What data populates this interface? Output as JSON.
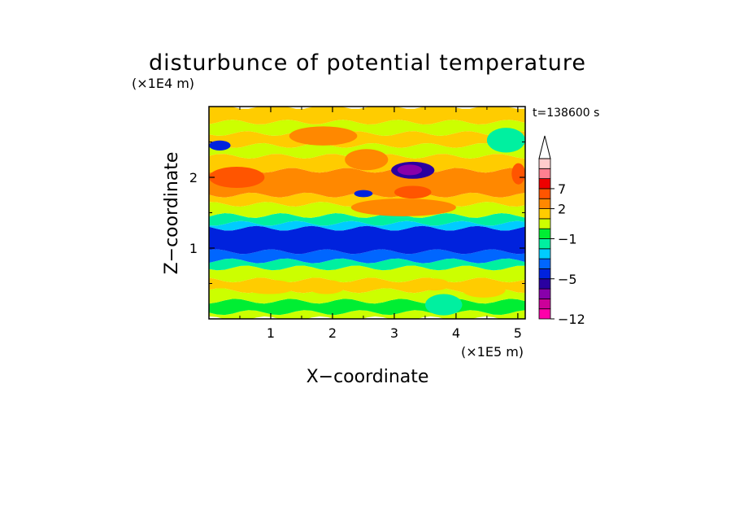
{
  "chart_data": {
    "type": "heatmap",
    "title": "disturbunce of potential temperature",
    "xlabel": "X−coordinate",
    "ylabel": "Z−coordinate",
    "x_unit": "(×1E5 m)",
    "y_unit": "(×1E4 m)",
    "time_label": "t=138600 s",
    "xlim": [
      0,
      5.12
    ],
    "ylim": [
      0,
      3.0
    ],
    "x_ticks": [
      1,
      2,
      3,
      4,
      5
    ],
    "x_tick_labels": [
      "1",
      "2",
      "3",
      "4",
      "5"
    ],
    "y_ticks": [
      1,
      2
    ],
    "y_tick_labels": [
      "1",
      "2"
    ],
    "colorbar": {
      "levels": [
        -12,
        -10,
        -8,
        -6,
        -5,
        -4,
        -3,
        -2,
        -1,
        0,
        1,
        2,
        4,
        7,
        9,
        11
      ],
      "colors": [
        "#ff00aa",
        "#cc0099",
        "#8800aa",
        "#2a00a0",
        "#0022dd",
        "#0066ff",
        "#00ccff",
        "#00f0a0",
        "#00ee33",
        "#ccff00",
        "#ffcc00",
        "#ff8800",
        "#ff5500",
        "#ee0000",
        "#ff8090",
        "#ffcccc"
      ],
      "extend": "max",
      "tick_labels": [
        "−12",
        "−5",
        "−1",
        "2",
        "7"
      ],
      "tick_values": [
        -12,
        -5,
        -1,
        2,
        7
      ]
    },
    "bands": [
      {
        "z": [
          0.0,
          0.09
        ],
        "value": 0.5
      },
      {
        "z": [
          0.09,
          0.25
        ],
        "value": -0.5
      },
      {
        "z": [
          0.25,
          0.4
        ],
        "value": 0.5
      },
      {
        "z": [
          0.4,
          0.55
        ],
        "value": 1.5
      },
      {
        "z": [
          0.55,
          0.72
        ],
        "value": 0.5
      },
      {
        "z": [
          0.72,
          0.82
        ],
        "value": -1.5
      },
      {
        "z": [
          0.82,
          0.95
        ],
        "value": -3.5
      },
      {
        "z": [
          0.95,
          1.28
        ],
        "value": -4.5
      },
      {
        "z": [
          1.28,
          1.35
        ],
        "value": -2.5
      },
      {
        "z": [
          1.35,
          1.46
        ],
        "value": -1.5
      },
      {
        "z": [
          1.46,
          1.62
        ],
        "value": 0.5
      },
      {
        "z": [
          1.62,
          1.75
        ],
        "value": 1.5
      },
      {
        "z": [
          1.75,
          2.1
        ],
        "value": 2.5
      },
      {
        "z": [
          2.1,
          2.3
        ],
        "value": 1.5
      },
      {
        "z": [
          2.3,
          2.45
        ],
        "value": 0.5
      },
      {
        "z": [
          2.45,
          2.62
        ],
        "value": 1.5
      },
      {
        "z": [
          2.62,
          2.78
        ],
        "value": 0.5
      },
      {
        "z": [
          2.78,
          3.0
        ],
        "value": 1.5
      }
    ],
    "features": [
      {
        "x": [
          0.0,
          0.9
        ],
        "z": [
          1.85,
          2.15
        ],
        "value": 5
      },
      {
        "x": [
          0.9,
          1.7
        ],
        "z": [
          1.8,
          2.1
        ],
        "value": 3
      },
      {
        "x": [
          2.2,
          2.9
        ],
        "z": [
          2.1,
          2.4
        ],
        "value": 3
      },
      {
        "x": [
          2.95,
          3.65
        ],
        "z": [
          1.98,
          2.22
        ],
        "value": -5.5
      },
      {
        "x": [
          3.05,
          3.45
        ],
        "z": [
          2.03,
          2.18
        ],
        "value": -7
      },
      {
        "x": [
          2.35,
          2.65
        ],
        "z": [
          1.72,
          1.82
        ],
        "value": -4.5
      },
      {
        "x": [
          3.0,
          3.6
        ],
        "z": [
          1.7,
          1.88
        ],
        "value": 5
      },
      {
        "x": [
          2.3,
          4.0
        ],
        "z": [
          1.45,
          1.7
        ],
        "value": 3
      },
      {
        "x": [
          0.0,
          0.35
        ],
        "z": [
          2.38,
          2.52
        ],
        "value": -4.5
      },
      {
        "x": [
          1.3,
          2.4
        ],
        "z": [
          2.45,
          2.72
        ],
        "value": 2.5
      },
      {
        "x": [
          4.9,
          5.12
        ],
        "z": [
          1.9,
          2.2
        ],
        "value": 5
      },
      {
        "x": [
          0.55,
          1.4
        ],
        "z": [
          0.35,
          0.55
        ],
        "value": 1.5
      },
      {
        "x": [
          1.6,
          2.2
        ],
        "z": [
          0.35,
          0.55
        ],
        "value": 1.5
      },
      {
        "x": [
          3.4,
          3.9
        ],
        "z": [
          0.4,
          0.57
        ],
        "value": 1.5
      },
      {
        "x": [
          4.1,
          4.8
        ],
        "z": [
          0.3,
          0.52
        ],
        "value": 1.5
      },
      {
        "x": [
          3.5,
          4.1
        ],
        "z": [
          0.05,
          0.35
        ],
        "value": -1.5
      },
      {
        "x": [
          4.5,
          5.12
        ],
        "z": [
          2.35,
          2.7
        ],
        "value": -1.5
      }
    ]
  }
}
